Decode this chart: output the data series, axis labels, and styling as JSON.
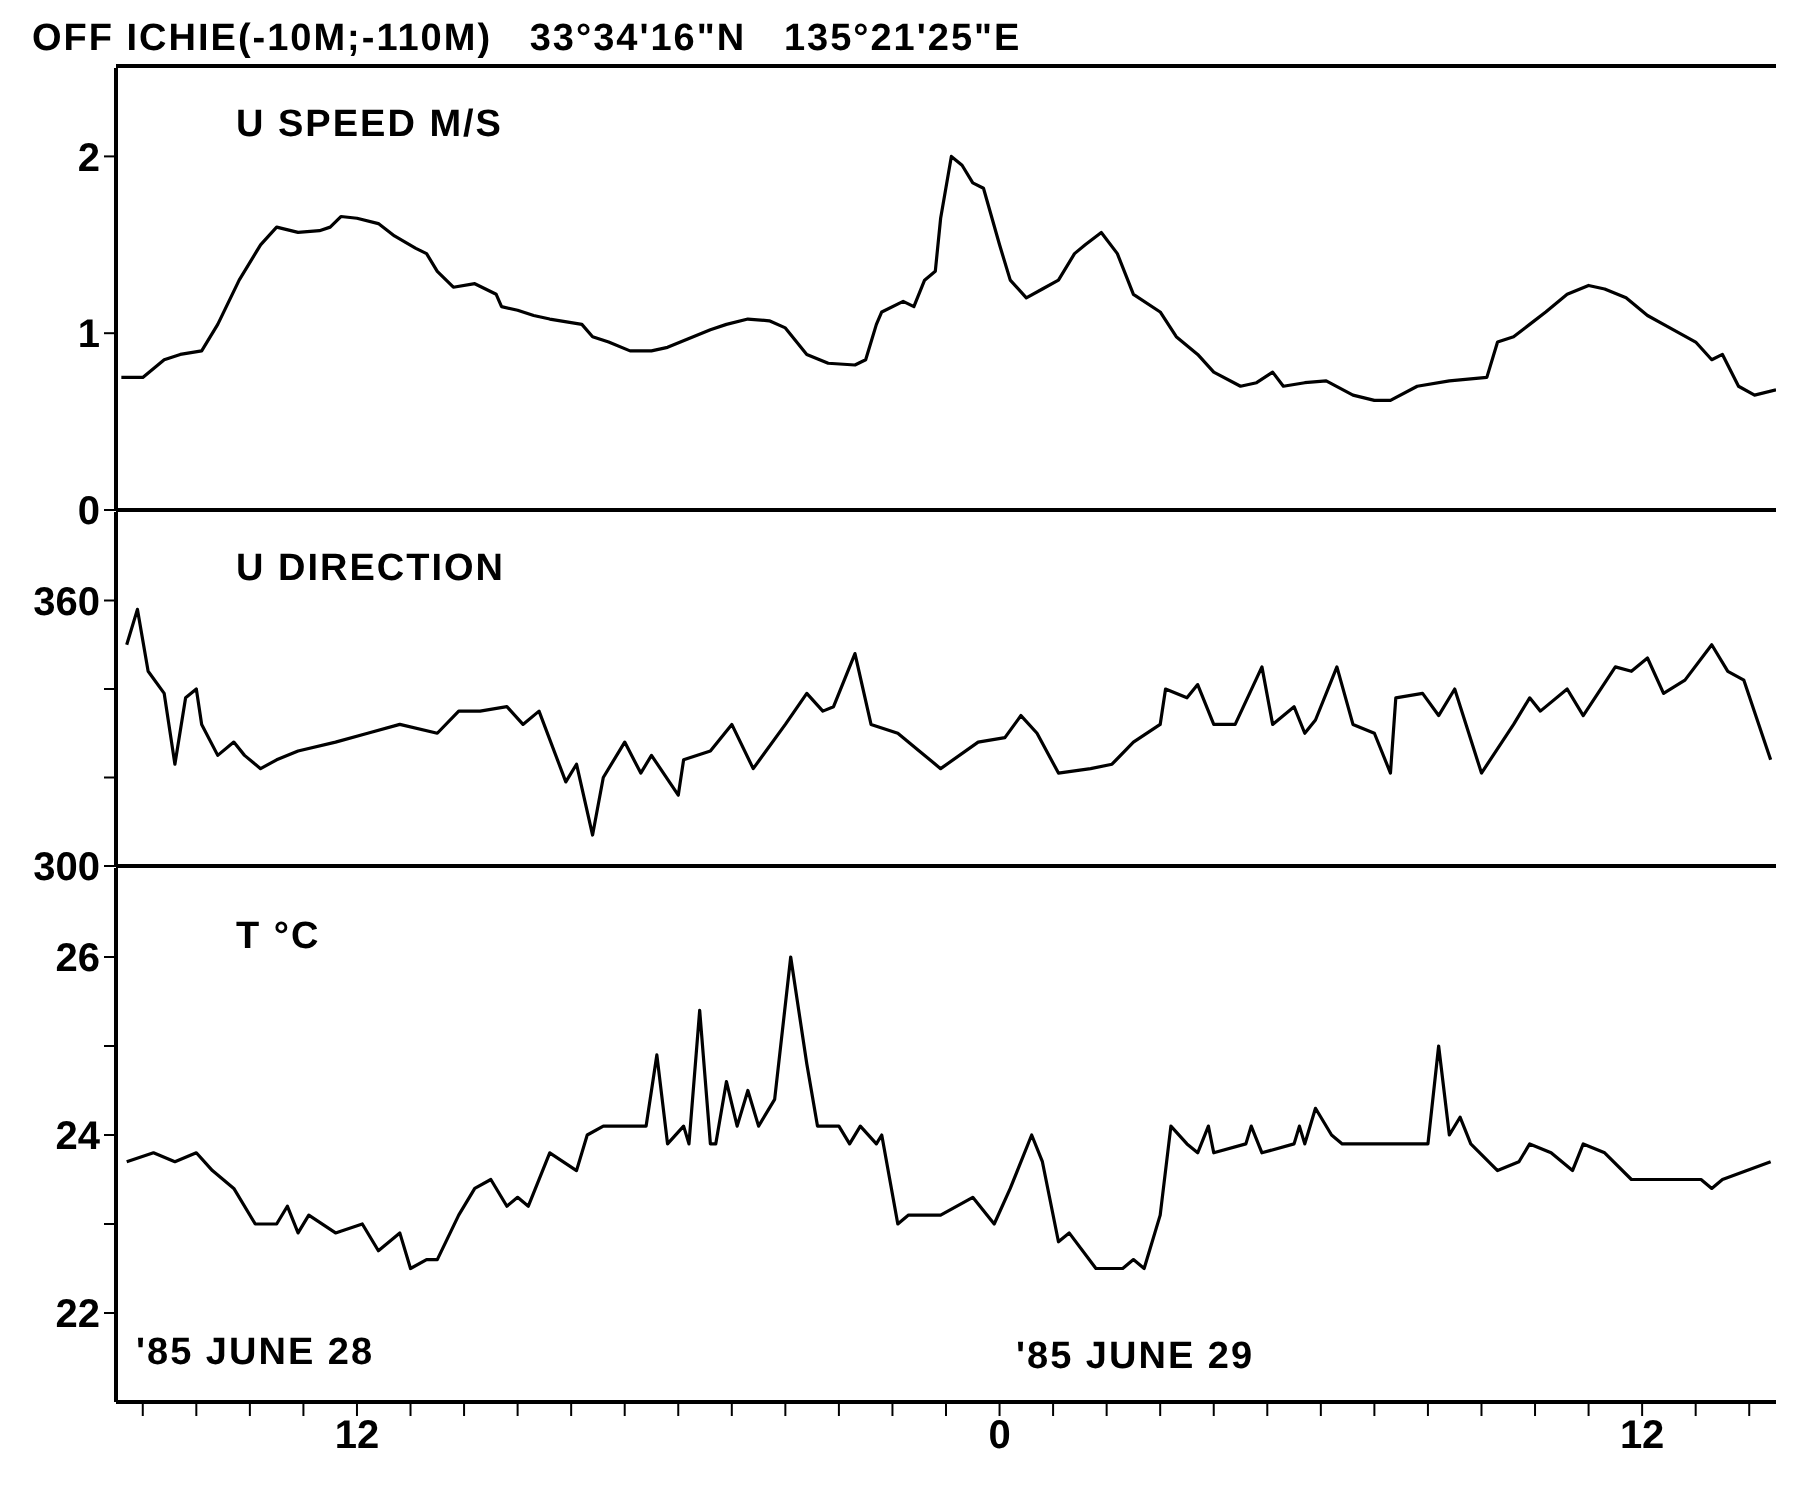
{
  "chart_data": [
    {
      "type": "line",
      "title": "OFF ICHIE(-10M;-110M)   33°34'16\"N   135°21'25\"E",
      "annotations": [
        "U SPEED M/S"
      ],
      "tick_labels": "y",
      "marker": "none",
      "line_style": "solid",
      "color": "#000000",
      "xlim": [
        "1985-06-28T07:30",
        "1985-06-29T14:30"
      ],
      "ylim": [
        0,
        2.5
      ],
      "yticks": [
        0,
        1,
        2
      ],
      "x": [
        "1985-06-28T07:36",
        "1985-06-28T08:00",
        "1985-06-28T08:24",
        "1985-06-28T08:42",
        "1985-06-28T09:06",
        "1985-06-28T09:24",
        "1985-06-28T09:48",
        "1985-06-28T10:12",
        "1985-06-28T10:30",
        "1985-06-28T10:54",
        "1985-06-28T11:18",
        "1985-06-28T11:30",
        "1985-06-28T11:42",
        "1985-06-28T12:00",
        "1985-06-28T12:24",
        "1985-06-28T12:42",
        "1985-06-28T13:06",
        "1985-06-28T13:18",
        "1985-06-28T13:30",
        "1985-06-28T13:48",
        "1985-06-28T14:12",
        "1985-06-28T14:36",
        "1985-06-28T14:42",
        "1985-06-28T15:00",
        "1985-06-28T15:18",
        "1985-06-28T15:36",
        "1985-06-28T16:12",
        "1985-06-28T16:24",
        "1985-06-28T16:42",
        "1985-06-28T17:06",
        "1985-06-28T17:30",
        "1985-06-28T17:48",
        "1985-06-28T18:12",
        "1985-06-28T18:36",
        "1985-06-28T18:54",
        "1985-06-28T19:18",
        "1985-06-28T19:42",
        "1985-06-28T20:00",
        "1985-06-28T20:24",
        "1985-06-28T20:48",
        "1985-06-28T21:18",
        "1985-06-28T21:30",
        "1985-06-28T21:42",
        "1985-06-28T21:48",
        "1985-06-28T22:12",
        "1985-06-28T22:24",
        "1985-06-28T22:36",
        "1985-06-28T22:48",
        "1985-06-28T22:54",
        "1985-06-28T23:06",
        "1985-06-28T23:18",
        "1985-06-28T23:30",
        "1985-06-28T23:42",
        "1985-06-29T00:00",
        "1985-06-29T00:12",
        "1985-06-29T00:30",
        "1985-06-29T00:48",
        "1985-06-29T01:06",
        "1985-06-29T01:24",
        "1985-06-29T01:36",
        "1985-06-29T01:54",
        "1985-06-29T02:12",
        "1985-06-29T02:30",
        "1985-06-29T03:00",
        "1985-06-29T03:18",
        "1985-06-29T03:42",
        "1985-06-29T04:00",
        "1985-06-29T04:30",
        "1985-06-29T04:48",
        "1985-06-29T05:06",
        "1985-06-29T05:18",
        "1985-06-29T05:42",
        "1985-06-29T06:06",
        "1985-06-29T06:36",
        "1985-06-29T07:00",
        "1985-06-29T07:18",
        "1985-06-29T07:48",
        "1985-06-29T08:24",
        "1985-06-29T09:06",
        "1985-06-29T09:18",
        "1985-06-29T09:36",
        "1985-06-29T09:54",
        "1985-06-29T10:12",
        "1985-06-29T10:36",
        "1985-06-29T11:00",
        "1985-06-29T11:18",
        "1985-06-29T11:42",
        "1985-06-29T12:06",
        "1985-06-29T12:24",
        "1985-06-29T13:00",
        "1985-06-29T13:18",
        "1985-06-29T13:30",
        "1985-06-29T13:48",
        "1985-06-29T14:06",
        "1985-06-29T14:30"
      ],
      "values": [
        0.75,
        0.75,
        0.85,
        0.88,
        0.9,
        1.05,
        1.3,
        1.5,
        1.6,
        1.57,
        1.58,
        1.6,
        1.66,
        1.65,
        1.62,
        1.55,
        1.48,
        1.45,
        1.35,
        1.26,
        1.28,
        1.22,
        1.15,
        1.13,
        1.1,
        1.08,
        1.05,
        0.98,
        0.95,
        0.9,
        0.9,
        0.92,
        0.97,
        1.02,
        1.05,
        1.08,
        1.07,
        1.03,
        0.88,
        0.83,
        0.82,
        0.85,
        1.05,
        1.12,
        1.18,
        1.15,
        1.3,
        1.35,
        1.65,
        2.0,
        1.95,
        1.85,
        1.82,
        1.5,
        1.3,
        1.2,
        1.25,
        1.3,
        1.45,
        1.5,
        1.57,
        1.45,
        1.22,
        1.12,
        0.98,
        0.88,
        0.78,
        0.7,
        0.72,
        0.78,
        0.7,
        0.72,
        0.73,
        0.65,
        0.62,
        0.62,
        0.7,
        0.73,
        0.75,
        0.95,
        0.98,
        1.05,
        1.12,
        1.22,
        1.27,
        1.25,
        1.2,
        1.1,
        1.05,
        0.95,
        0.85,
        0.88,
        0.7,
        0.65,
        0.68
      ]
    },
    {
      "type": "line",
      "annotations": [
        "U DIRECTION"
      ],
      "tick_labels": "y",
      "marker": "none",
      "line_style": "solid",
      "color": "#000000",
      "xlim": [
        "1985-06-28T07:30",
        "1985-06-29T14:30"
      ],
      "ylim": [
        300,
        380
      ],
      "yticks": [
        300,
        {
          "value": 320,
          "label": null
        },
        {
          "value": 340,
          "label": null
        },
        360
      ],
      "x": [
        "1985-06-28T07:42",
        "1985-06-28T07:54",
        "1985-06-28T08:06",
        "1985-06-28T08:24",
        "1985-06-28T08:36",
        "1985-06-28T08:48",
        "1985-06-28T09:00",
        "1985-06-28T09:06",
        "1985-06-28T09:24",
        "1985-06-28T09:42",
        "1985-06-28T09:54",
        "1985-06-28T10:12",
        "1985-06-28T10:30",
        "1985-06-28T10:54",
        "1985-06-28T11:36",
        "1985-06-28T12:12",
        "1985-06-28T12:48",
        "1985-06-28T13:30",
        "1985-06-28T13:54",
        "1985-06-28T14:18",
        "1985-06-28T14:48",
        "1985-06-28T15:06",
        "1985-06-28T15:24",
        "1985-06-28T15:54",
        "1985-06-28T16:06",
        "1985-06-28T16:24",
        "1985-06-28T16:36",
        "1985-06-28T17:00",
        "1985-06-28T17:18",
        "1985-06-28T17:30",
        "1985-06-28T18:00",
        "1985-06-28T18:06",
        "1985-06-28T18:36",
        "1985-06-28T19:00",
        "1985-06-28T19:24",
        "1985-06-28T20:00",
        "1985-06-28T20:24",
        "1985-06-28T20:42",
        "1985-06-28T20:54",
        "1985-06-28T21:18",
        "1985-06-28T21:36",
        "1985-06-28T22:06",
        "1985-06-28T22:30",
        "1985-06-28T22:54",
        "1985-06-28T23:36",
        "1985-06-29T00:06",
        "1985-06-29T00:24",
        "1985-06-29T00:42",
        "1985-06-29T01:06",
        "1985-06-29T01:42",
        "1985-06-29T02:06",
        "1985-06-29T02:30",
        "1985-06-29T03:00",
        "1985-06-29T03:06",
        "1985-06-29T03:30",
        "1985-06-29T03:42",
        "1985-06-29T04:00",
        "1985-06-29T04:24",
        "1985-06-29T04:54",
        "1985-06-29T05:06",
        "1985-06-29T05:30",
        "1985-06-29T05:42",
        "1985-06-29T05:54",
        "1985-06-29T06:18",
        "1985-06-29T06:36",
        "1985-06-29T07:00",
        "1985-06-29T07:18",
        "1985-06-29T07:24",
        "1985-06-29T07:54",
        "1985-06-29T08:12",
        "1985-06-29T08:30",
        "1985-06-29T09:00",
        "1985-06-29T09:36",
        "1985-06-29T09:54",
        "1985-06-29T10:06",
        "1985-06-29T10:36",
        "1985-06-29T10:54",
        "1985-06-29T11:30",
        "1985-06-29T11:48",
        "1985-06-29T12:06",
        "1985-06-29T12:24",
        "1985-06-29T12:48",
        "1985-06-29T13:18",
        "1985-06-29T13:36",
        "1985-06-29T13:54",
        "1985-06-29T14:24"
      ],
      "values": [
        350,
        358,
        344,
        339,
        323,
        338,
        340,
        332,
        325,
        328,
        325,
        322,
        324,
        326,
        328,
        330,
        332,
        330,
        335,
        335,
        336,
        332,
        335,
        319,
        323,
        307,
        320,
        328,
        321,
        325,
        316,
        324,
        326,
        332,
        322,
        332,
        339,
        335,
        336,
        348,
        332,
        330,
        326,
        322,
        328,
        329,
        334,
        330,
        321,
        322,
        323,
        328,
        332,
        340,
        338,
        341,
        332,
        332,
        345,
        332,
        336,
        330,
        333,
        345,
        332,
        330,
        321,
        338,
        339,
        334,
        340,
        321,
        332,
        338,
        335,
        340,
        334,
        345,
        344,
        347,
        339,
        342,
        350,
        344,
        342,
        324
      ]
    },
    {
      "type": "line",
      "annotations": [
        "T °C",
        "'85 JUNE 28",
        "'85 JUNE 29"
      ],
      "marker": "none",
      "line_style": "solid",
      "color": "#000000",
      "xlim": [
        "1985-06-28T07:30",
        "1985-06-29T14:30"
      ],
      "xticks": [
        {
          "value": "1985-06-28T08:00",
          "label": null
        },
        {
          "value": "1985-06-28T09:00",
          "label": null
        },
        {
          "value": "1985-06-28T10:00",
          "label": null
        },
        {
          "value": "1985-06-28T11:00",
          "label": null
        },
        {
          "value": "1985-06-28T12:00",
          "label": "12"
        },
        {
          "value": "1985-06-28T13:00",
          "label": null
        },
        {
          "value": "1985-06-28T14:00",
          "label": null
        },
        {
          "value": "1985-06-28T15:00",
          "label": null
        },
        {
          "value": "1985-06-28T16:00",
          "label": null
        },
        {
          "value": "1985-06-28T17:00",
          "label": null
        },
        {
          "value": "1985-06-28T18:00",
          "label": null
        },
        {
          "value": "1985-06-28T19:00",
          "label": null
        },
        {
          "value": "1985-06-28T20:00",
          "label": null
        },
        {
          "value": "1985-06-28T21:00",
          "label": null
        },
        {
          "value": "1985-06-28T22:00",
          "label": null
        },
        {
          "value": "1985-06-28T23:00",
          "label": null
        },
        {
          "value": "1985-06-29T00:00",
          "label": "0"
        },
        {
          "value": "1985-06-29T01:00",
          "label": null
        },
        {
          "value": "1985-06-29T02:00",
          "label": null
        },
        {
          "value": "1985-06-29T03:00",
          "label": null
        },
        {
          "value": "1985-06-29T04:00",
          "label": null
        },
        {
          "value": "1985-06-29T05:00",
          "label": null
        },
        {
          "value": "1985-06-29T06:00",
          "label": null
        },
        {
          "value": "1985-06-29T07:00",
          "label": null
        },
        {
          "value": "1985-06-29T08:00",
          "label": null
        },
        {
          "value": "1985-06-29T09:00",
          "label": null
        },
        {
          "value": "1985-06-29T10:00",
          "label": null
        },
        {
          "value": "1985-06-29T11:00",
          "label": null
        },
        {
          "value": "1985-06-29T12:00",
          "label": "12"
        },
        {
          "value": "1985-06-29T13:00",
          "label": null
        },
        {
          "value": "1985-06-29T14:00",
          "label": null
        }
      ],
      "ylim": [
        21,
        27
      ],
      "yticks": [
        22,
        {
          "value": 23,
          "label": null
        },
        24,
        {
          "value": 25,
          "label": null
        },
        26
      ],
      "x": [
        "1985-06-28T07:42",
        "1985-06-28T08:12",
        "1985-06-28T08:36",
        "1985-06-28T09:00",
        "1985-06-28T09:18",
        "1985-06-28T09:42",
        "1985-06-28T10:06",
        "1985-06-28T10:30",
        "1985-06-28T10:42",
        "1985-06-28T10:54",
        "1985-06-28T11:06",
        "1985-06-28T11:36",
        "1985-06-28T12:06",
        "1985-06-28T12:24",
        "1985-06-28T12:48",
        "1985-06-28T13:00",
        "1985-06-28T13:18",
        "1985-06-28T13:30",
        "1985-06-28T13:54",
        "1985-06-28T14:12",
        "1985-06-28T14:30",
        "1985-06-28T14:48",
        "1985-06-28T15:00",
        "1985-06-28T15:12",
        "1985-06-28T15:36",
        "1985-06-28T16:06",
        "1985-06-28T16:18",
        "1985-06-28T16:36",
        "1985-06-28T17:18",
        "1985-06-28T17:24",
        "1985-06-28T17:36",
        "1985-06-28T17:48",
        "1985-06-28T18:06",
        "1985-06-28T18:12",
        "1985-06-28T18:24",
        "1985-06-28T18:36",
        "1985-06-28T18:42",
        "1985-06-28T18:54",
        "1985-06-28T19:06",
        "1985-06-28T19:18",
        "1985-06-28T19:30",
        "1985-06-28T19:48",
        "1985-06-28T20:06",
        "1985-06-28T20:24",
        "1985-06-28T20:36",
        "1985-06-28T21:00",
        "1985-06-28T21:12",
        "1985-06-28T21:24",
        "1985-06-28T21:42",
        "1985-06-28T21:48",
        "1985-06-28T22:06",
        "1985-06-28T22:18",
        "1985-06-28T22:54",
        "1985-06-28T23:30",
        "1985-06-28T23:54",
        "1985-06-29T00:12",
        "1985-06-29T00:36",
        "1985-06-29T00:48",
        "1985-06-29T01:06",
        "1985-06-29T01:18",
        "1985-06-29T01:48",
        "1985-06-29T02:18",
        "1985-06-29T02:30",
        "1985-06-29T02:42",
        "1985-06-29T03:00",
        "1985-06-29T03:12",
        "1985-06-29T03:30",
        "1985-06-29T03:42",
        "1985-06-29T03:54",
        "1985-06-29T04:00",
        "1985-06-29T04:36",
        "1985-06-29T04:42",
        "1985-06-29T04:54",
        "1985-06-29T05:30",
        "1985-06-29T05:36",
        "1985-06-29T05:42",
        "1985-06-29T05:54",
        "1985-06-29T06:12",
        "1985-06-29T06:24",
        "1985-06-29T06:42",
        "1985-06-29T08:00",
        "1985-06-29T08:12",
        "1985-06-29T08:24",
        "1985-06-29T08:36",
        "1985-06-29T08:48",
        "1985-06-29T09:18",
        "1985-06-29T09:42",
        "1985-06-29T09:54",
        "1985-06-29T10:18",
        "1985-06-29T10:42",
        "1985-06-29T10:54",
        "1985-06-29T11:18",
        "1985-06-29T11:48",
        "1985-06-29T12:06",
        "1985-06-29T13:06",
        "1985-06-29T13:18",
        "1985-06-29T13:30",
        "1985-06-29T14:24"
      ],
      "values": [
        23.7,
        23.8,
        23.7,
        23.8,
        23.6,
        23.4,
        23.0,
        23.0,
        23.2,
        22.9,
        23.1,
        22.9,
        23.0,
        22.7,
        22.9,
        22.5,
        22.6,
        22.6,
        23.1,
        23.4,
        23.5,
        23.2,
        23.3,
        23.2,
        23.8,
        23.6,
        24.0,
        24.1,
        24.1,
        24.1,
        24.9,
        23.9,
        24.1,
        23.9,
        25.4,
        23.9,
        23.9,
        24.6,
        24.1,
        24.5,
        24.1,
        24.4,
        26.0,
        24.8,
        24.1,
        24.1,
        23.9,
        24.1,
        23.9,
        24.0,
        23.0,
        23.1,
        23.1,
        23.3,
        23.0,
        23.4,
        24.0,
        23.7,
        22.8,
        22.9,
        22.5,
        22.5,
        22.6,
        22.5,
        23.1,
        24.1,
        23.9,
        23.8,
        24.1,
        23.8,
        23.9,
        24.1,
        23.8,
        23.9,
        24.1,
        23.9,
        24.3,
        24.0,
        23.9,
        23.9,
        23.9,
        25.0,
        24.0,
        24.2,
        23.9,
        23.6,
        23.7,
        23.9,
        23.8,
        23.6,
        23.9,
        23.8,
        23.5,
        23.5,
        23.5,
        23.4,
        23.5,
        23.7
      ]
    }
  ]
}
